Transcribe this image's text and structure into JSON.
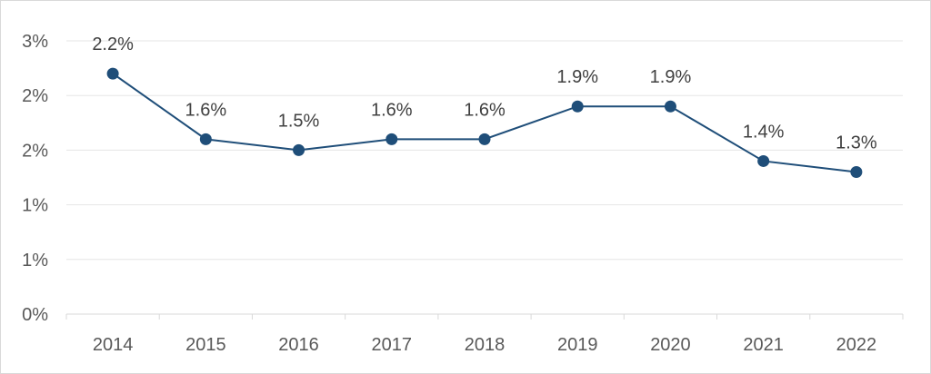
{
  "chart_data": {
    "type": "line",
    "title": "",
    "xlabel": "",
    "ylabel": "",
    "categories": [
      "2014",
      "2015",
      "2016",
      "2017",
      "2018",
      "2019",
      "2020",
      "2021",
      "2022"
    ],
    "series": [
      {
        "values": [
          2.2,
          1.6,
          1.5,
          1.6,
          1.6,
          1.9,
          1.9,
          1.4,
          1.3
        ],
        "data_labels": [
          "2.2%",
          "1.6%",
          "1.5%",
          "1.6%",
          "1.6%",
          "1.9%",
          "1.9%",
          "1.4%",
          "1.3%"
        ],
        "color": "#1f4e79"
      }
    ],
    "y_ticks": [
      0,
      0.5,
      1,
      1.5,
      2,
      2.5
    ],
    "y_tick_labels": [
      "0%",
      "1%",
      "1%",
      "2%",
      "2%",
      "3%"
    ],
    "ylim": [
      0,
      2.5
    ],
    "grid": true,
    "legend": "none",
    "colors": {
      "line": "#1f4e79",
      "grid": "#e6e6e6",
      "text": "#595959"
    }
  }
}
